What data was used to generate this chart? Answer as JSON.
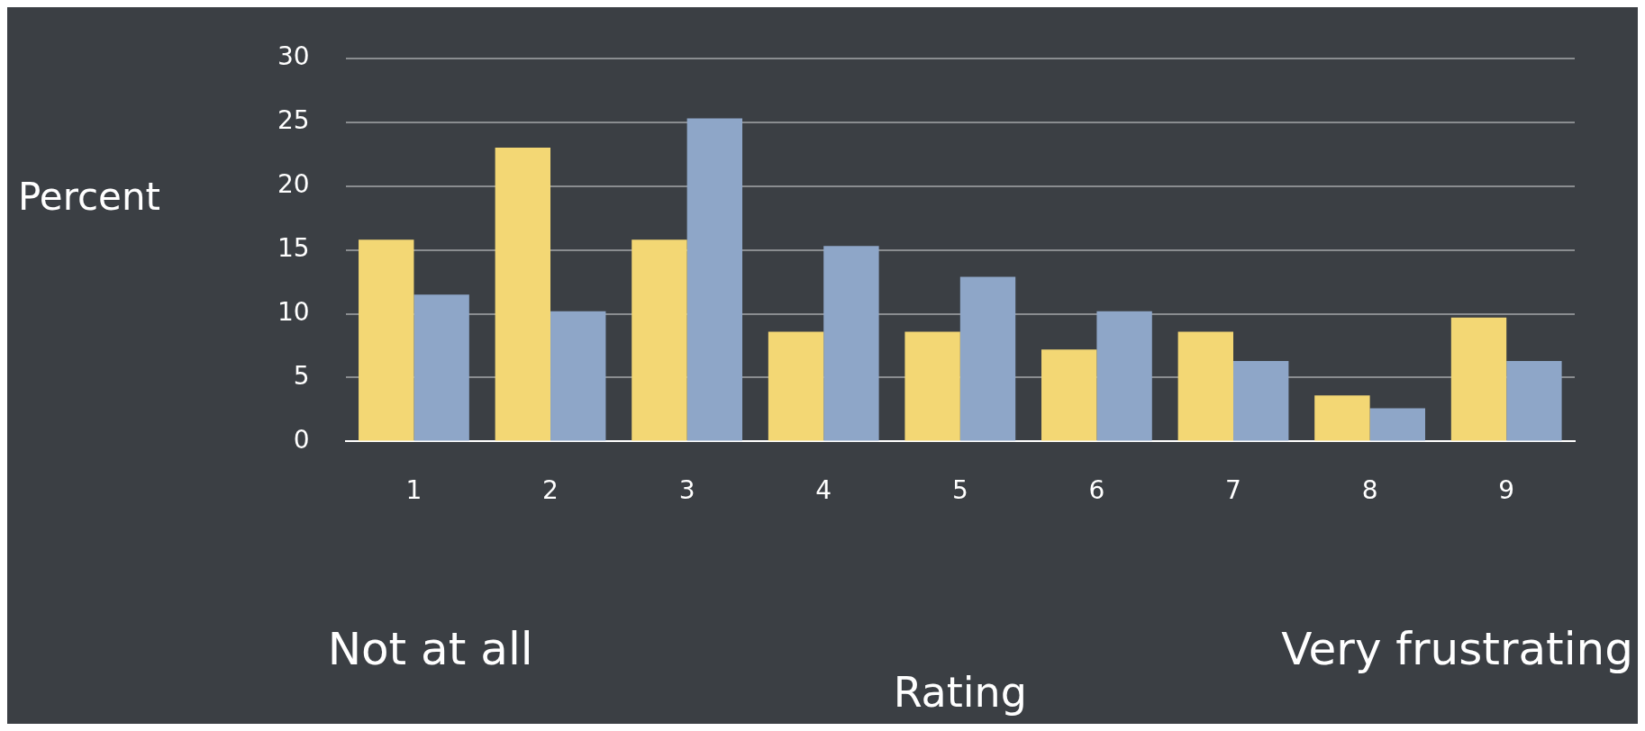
{
  "chart_data": {
    "type": "bar",
    "categories": [
      "1",
      "2",
      "3",
      "4",
      "5",
      "6",
      "7",
      "8",
      "9"
    ],
    "series": [
      {
        "color": "#f3d774",
        "values": [
          15.8,
          23.0,
          15.8,
          8.6,
          8.6,
          7.2,
          8.6,
          3.6,
          9.7
        ]
      },
      {
        "color": "#8ea6c8",
        "values": [
          11.5,
          10.2,
          25.3,
          15.3,
          12.9,
          10.2,
          6.3,
          2.6,
          6.3
        ]
      }
    ],
    "xlabel": "Rating",
    "ylabel": "Percent",
    "annotations": [
      "Not at all",
      "Very frustrating"
    ],
    "ylim": [
      0,
      30
    ],
    "yticks": [
      0,
      5,
      10,
      15,
      20,
      25,
      30
    ],
    "grid": "y",
    "legend": false
  }
}
